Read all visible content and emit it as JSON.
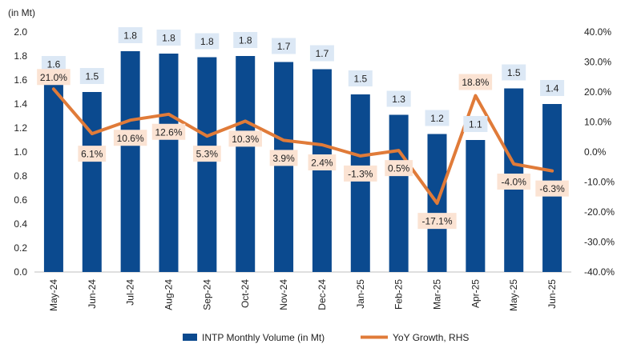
{
  "chart_data": {
    "type": "bar+line",
    "unit_label": "(in Mt)",
    "categories": [
      "May-24",
      "Jun-24",
      "Jul-24",
      "Aug-24",
      "Sep-24",
      "Oct-24",
      "Nov-24",
      "Dec-24",
      "Jan-25",
      "Feb-25",
      "Mar-25",
      "Apr-25",
      "May-25",
      "Jun-25"
    ],
    "series": [
      {
        "name": "INTP Monthly Volume (in Mt)",
        "type": "bar",
        "axis": "left",
        "color": "#0b4a8f",
        "values": [
          1.6,
          1.5,
          1.84,
          1.82,
          1.79,
          1.8,
          1.75,
          1.69,
          1.48,
          1.31,
          1.15,
          1.1,
          1.53,
          1.4
        ],
        "labels": [
          "1.6",
          "1.5",
          "1.8",
          "1.8",
          "1.8",
          "1.8",
          "1.7",
          "1.7",
          "1.5",
          "1.3",
          "1.2",
          "1.1",
          "1.5",
          "1.4"
        ],
        "label_bg": "#dce8f5"
      },
      {
        "name": "YoY Growth, RHS",
        "type": "line",
        "axis": "right",
        "color": "#e07b39",
        "values": [
          21.0,
          6.1,
          10.6,
          12.6,
          5.3,
          10.3,
          3.9,
          2.4,
          -1.3,
          0.5,
          -17.1,
          18.8,
          -4.0,
          -6.3
        ],
        "labels": [
          "21.0%",
          "6.1%",
          "10.6%",
          "12.6%",
          "5.3%",
          "10.3%",
          "3.9%",
          "2.4%",
          "-1.3%",
          "0.5%",
          "-17.1%",
          "18.8%",
          "-4.0%",
          "-6.3%"
        ],
        "label_bg": "#fbe3d3"
      }
    ],
    "y_left": {
      "min": 0,
      "max": 2.0,
      "step": 0.2,
      "ticks": [
        "0.0",
        "0.2",
        "0.4",
        "0.6",
        "0.8",
        "1.0",
        "1.2",
        "1.4",
        "1.6",
        "1.8",
        "2.0"
      ]
    },
    "y_right": {
      "min": -40,
      "max": 40,
      "step": 10,
      "ticks": [
        "-40.0%",
        "-30.0%",
        "-20.0%",
        "-10.0%",
        "0.0%",
        "10.0%",
        "20.0%",
        "30.0%",
        "40.0%"
      ]
    },
    "legend": {
      "position": "bottom",
      "items": [
        {
          "name": "INTP Monthly Volume (in Mt)",
          "kind": "bar",
          "color": "#0b4a8f"
        },
        {
          "name": "YoY Growth, RHS",
          "kind": "line",
          "color": "#e07b39"
        }
      ]
    },
    "grid": false
  }
}
